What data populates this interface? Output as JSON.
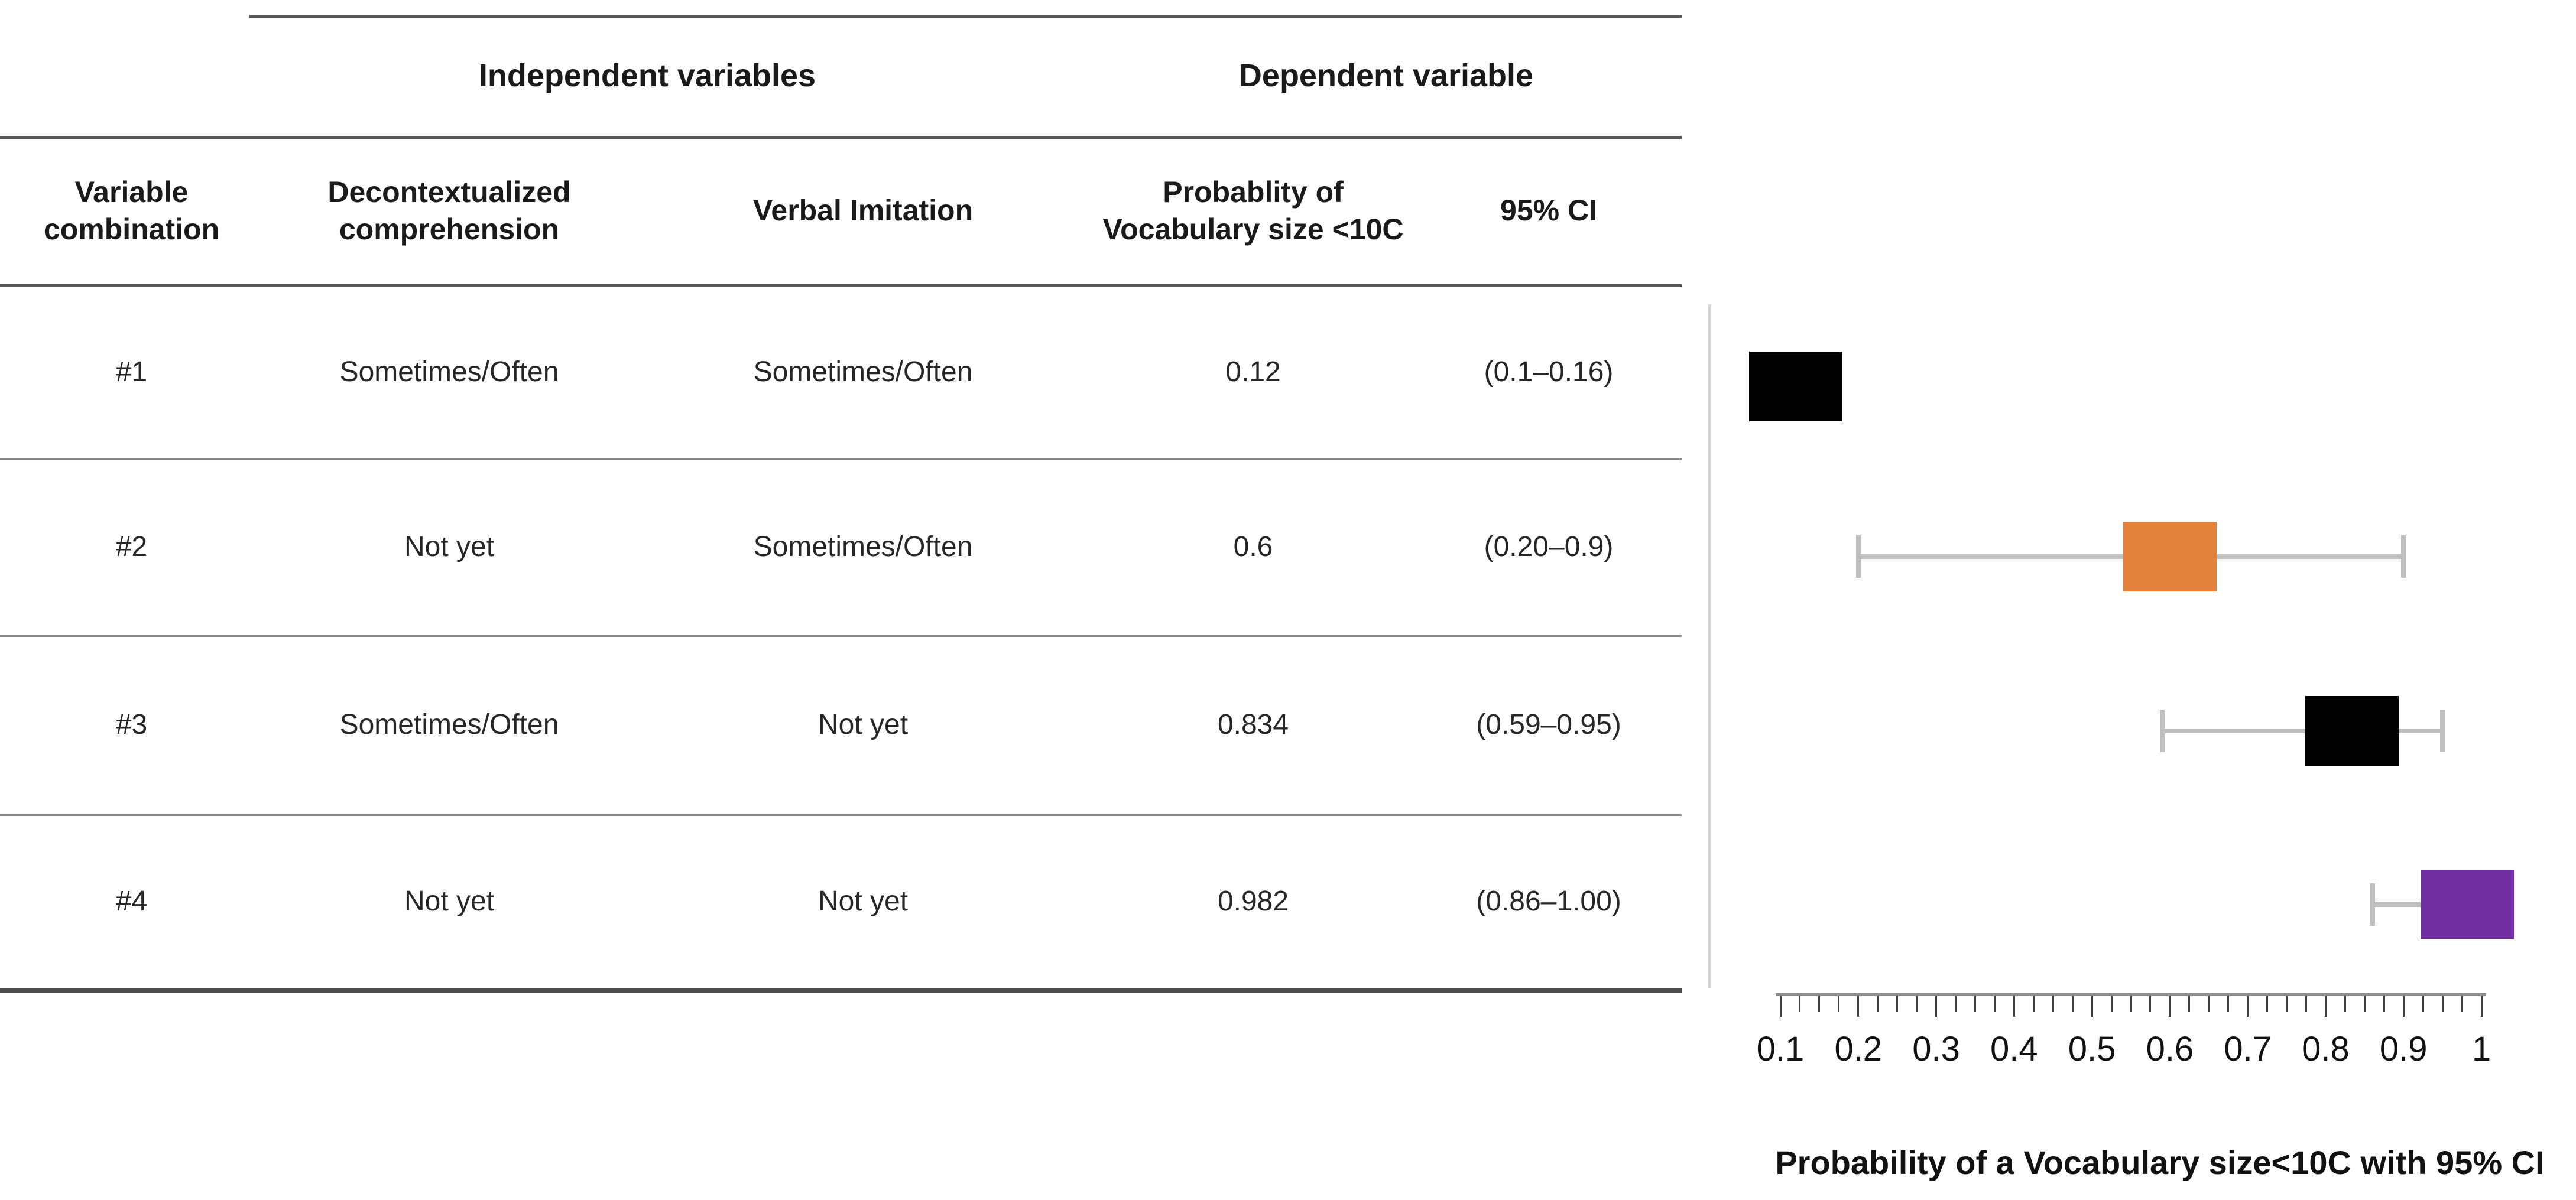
{
  "figure": {
    "table": {
      "group_headers": [
        {
          "label": "Independent variables"
        },
        {
          "label": "Dependent variable"
        }
      ],
      "columns": [
        {
          "label": "Variable\ncombination"
        },
        {
          "label": "Decontextualized\ncomprehension"
        },
        {
          "label": "Verbal Imitation"
        },
        {
          "label": "Probablity of\nVocabulary size <10C"
        },
        {
          "label": "95% CI"
        }
      ],
      "rows": [
        {
          "cells": [
            "#1",
            "Sometimes/Often",
            "Sometimes/Often",
            "0.12",
            "(0.1–0.16)"
          ]
        },
        {
          "cells": [
            "#2",
            "Not yet",
            "Sometimes/Often",
            "0.6",
            "(0.20–0.9)"
          ]
        },
        {
          "cells": [
            "#3",
            "Sometimes/Often",
            "Not yet",
            "0.834",
            "(0.59–0.95)"
          ]
        },
        {
          "cells": [
            "#4",
            "Not yet",
            "Not yet",
            "0.982",
            "(0.86–1.00)"
          ]
        }
      ]
    }
  },
  "chart_data": {
    "type": "forest",
    "title": "Probability of a Vocabulary size<10C with 95% CI",
    "xlabel": "Probability of a Vocabulary size<10C with 95% CI",
    "x_axis": {
      "min": 0.1,
      "max": 1.0,
      "major_tick_step": 0.1,
      "minor_tick_step": 0.025,
      "tick_labels": [
        "0.1",
        "0.2",
        "0.3",
        "0.4",
        "0.5",
        "0.6",
        "0.7",
        "0.8",
        "0.9",
        "1"
      ]
    },
    "grid": false,
    "legend": false,
    "points": [
      {
        "row": "#1",
        "estimate": 0.12,
        "ci_low": 0.1,
        "ci_high": 0.16,
        "color": "#000000"
      },
      {
        "row": "#2",
        "estimate": 0.6,
        "ci_low": 0.2,
        "ci_high": 0.9,
        "color": "#E2823A"
      },
      {
        "row": "#3",
        "estimate": 0.834,
        "ci_low": 0.59,
        "ci_high": 0.95,
        "color": "#000000"
      },
      {
        "row": "#4",
        "estimate": 0.982,
        "ci_low": 0.86,
        "ci_high": 1.0,
        "color": "#70309F"
      }
    ],
    "colors": {
      "whisker": "#C0C0C0",
      "axis_line": "#8C8C8C",
      "tick": "#3F3F3F",
      "text": "#111111"
    }
  }
}
